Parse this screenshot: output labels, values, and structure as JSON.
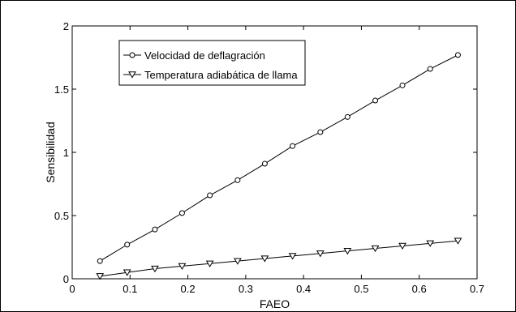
{
  "chart_data": {
    "type": "line",
    "title": "",
    "xlabel": "FAEO",
    "ylabel": "Sensibilidad",
    "xlim": [
      0,
      0.7
    ],
    "ylim": [
      0,
      2
    ],
    "x_ticks": [
      0,
      0.1,
      0.2,
      0.3,
      0.4,
      0.5,
      0.6,
      0.7
    ],
    "y_ticks": [
      0,
      0.5,
      1,
      1.5,
      2
    ],
    "x_tick_labels": [
      "0",
      "0.1",
      "0.2",
      "0.3",
      "0.4",
      "0.5",
      "0.6",
      "0.7"
    ],
    "y_tick_labels": [
      "0",
      "0.5",
      "1",
      "1.5",
      "2"
    ],
    "grid": false,
    "legend_position": "top-left",
    "series": [
      {
        "name": "Velocidad de deflagración",
        "marker": "circle",
        "x": [
          0.048,
          0.095,
          0.143,
          0.19,
          0.238,
          0.286,
          0.333,
          0.381,
          0.429,
          0.476,
          0.524,
          0.571,
          0.619,
          0.667
        ],
        "y": [
          0.14,
          0.27,
          0.39,
          0.52,
          0.66,
          0.78,
          0.91,
          1.05,
          1.16,
          1.28,
          1.41,
          1.53,
          1.66,
          1.77
        ]
      },
      {
        "name": "Temperatura adiabática de llama",
        "marker": "triangle-down",
        "x": [
          0.048,
          0.095,
          0.143,
          0.19,
          0.238,
          0.286,
          0.333,
          0.381,
          0.429,
          0.476,
          0.524,
          0.571,
          0.619,
          0.667
        ],
        "y": [
          0.02,
          0.05,
          0.08,
          0.1,
          0.12,
          0.14,
          0.16,
          0.18,
          0.2,
          0.22,
          0.24,
          0.26,
          0.28,
          0.3
        ]
      }
    ],
    "colors": {
      "line": "#000000",
      "background": "#ffffff"
    }
  }
}
